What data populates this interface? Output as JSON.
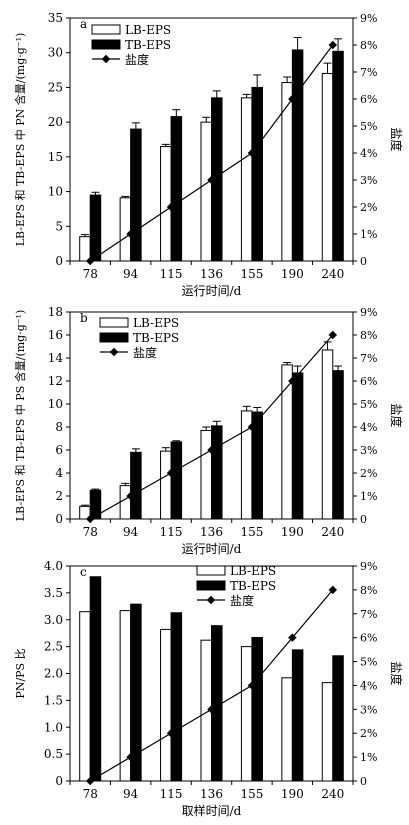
{
  "chart_data": [
    {
      "panel": "a",
      "type": "bar",
      "categories": [
        "78",
        "94",
        "115",
        "136",
        "155",
        "190",
        "240"
      ],
      "xlabel": "运行时间/d",
      "ylabel": "LB-EPS 和 TB-EPS 中 PN 含量/(mg·g⁻¹)",
      "ylabel_right": "盐度",
      "ylim": [
        0,
        35
      ],
      "yticks": [
        0,
        5,
        10,
        15,
        20,
        25,
        30,
        35
      ],
      "y2lim": [
        0,
        9
      ],
      "y2ticks": [
        "0",
        "1%",
        "2%",
        "3%",
        "4%",
        "5%",
        "6%",
        "7%",
        "8%",
        "9%"
      ],
      "series": [
        {
          "name": "LB-EPS",
          "values": [
            3.5,
            9.1,
            16.5,
            20.0,
            23.5,
            25.7,
            27.0
          ],
          "errors": [
            0.3,
            0.2,
            0.3,
            0.7,
            0.5,
            0.8,
            1.5
          ]
        },
        {
          "name": "TB-EPS",
          "values": [
            9.5,
            19.0,
            20.8,
            23.5,
            25.0,
            30.4,
            30.2
          ],
          "errors": [
            0.4,
            0.9,
            1.0,
            1.0,
            1.8,
            1.8,
            1.8
          ]
        }
      ],
      "line": {
        "name": "盐度",
        "values": [
          0,
          1,
          2,
          3,
          4,
          6,
          8
        ]
      },
      "legend_position": "top-left"
    },
    {
      "panel": "b",
      "type": "bar",
      "categories": [
        "78",
        "94",
        "115",
        "136",
        "155",
        "190",
        "240"
      ],
      "xlabel": "运行时间/d",
      "ylabel": "LB-EPS 和 TB-EPS 中 PS 含量/(mg·g⁻¹)",
      "ylabel_right": "盐度",
      "ylim": [
        0,
        18
      ],
      "yticks": [
        0,
        2,
        4,
        6,
        8,
        10,
        12,
        14,
        16,
        18
      ],
      "y2lim": [
        0,
        9
      ],
      "y2ticks": [
        "0",
        "1%",
        "2%",
        "3%",
        "4%",
        "5%",
        "6%",
        "7%",
        "8%",
        "9%"
      ],
      "series": [
        {
          "name": "LB-EPS",
          "values": [
            1.1,
            2.9,
            5.9,
            7.7,
            9.4,
            13.4,
            14.7
          ],
          "errors": [
            0.1,
            0.2,
            0.3,
            0.3,
            0.4,
            0.2,
            0.7
          ]
        },
        {
          "name": "TB-EPS",
          "values": [
            2.5,
            5.8,
            6.7,
            8.1,
            9.3,
            12.7,
            12.9
          ],
          "errors": [
            0.1,
            0.3,
            0.1,
            0.4,
            0.4,
            0.6,
            0.4
          ]
        }
      ],
      "line": {
        "name": "盐度",
        "values": [
          0,
          1,
          2,
          3,
          4,
          6,
          8
        ]
      },
      "legend_position": "top-left"
    },
    {
      "panel": "c",
      "type": "bar",
      "categories": [
        "78",
        "94",
        "115",
        "136",
        "155",
        "190",
        "240"
      ],
      "xlabel": "取样时间/d",
      "ylabel": "PN/PS 比",
      "ylabel_right": "盐度",
      "ylim": [
        0,
        4.0
      ],
      "yticks": [
        "0",
        "0.5",
        "1.0",
        "1.5",
        "2.0",
        "2.5",
        "3.0",
        "3.5",
        "4.0"
      ],
      "y2lim": [
        0,
        9
      ],
      "y2ticks": [
        "0",
        "1%",
        "2%",
        "3%",
        "4%",
        "5%",
        "6%",
        "7%",
        "8%",
        "9%"
      ],
      "series": [
        {
          "name": "LB-EPS",
          "values": [
            3.15,
            3.17,
            2.82,
            2.62,
            2.5,
            1.92,
            1.83
          ]
        },
        {
          "name": "TB-EPS",
          "values": [
            3.8,
            3.29,
            3.13,
            2.89,
            2.67,
            2.44,
            2.33
          ]
        }
      ],
      "line": {
        "name": "盐度",
        "values": [
          0,
          1,
          2,
          3,
          4,
          6,
          8
        ]
      },
      "legend_position": "top-center"
    }
  ]
}
